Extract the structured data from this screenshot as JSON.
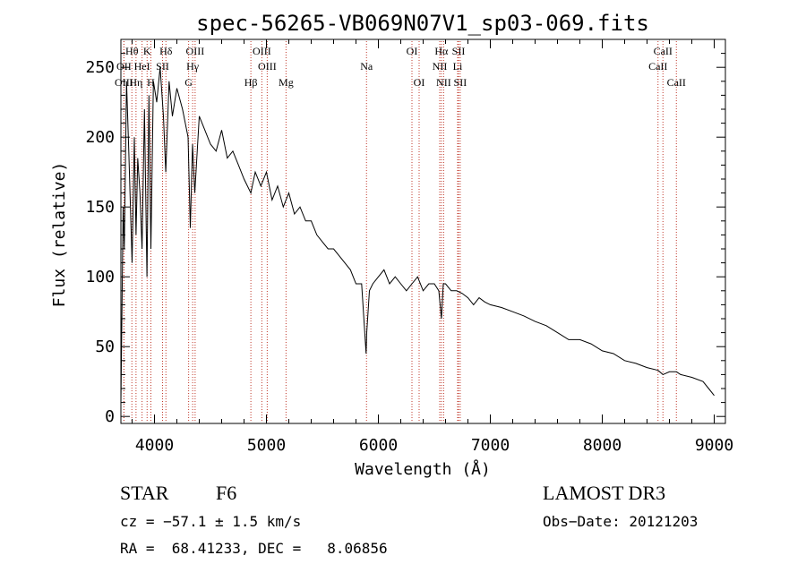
{
  "chart_data": {
    "type": "line",
    "title": "spec-56265-VB069N07V1_sp03-069.fits",
    "xlabel": "Wavelength (Å)",
    "ylabel": "Flux (relative)",
    "xlim": [
      3700,
      9100
    ],
    "ylim": [
      -5,
      270
    ],
    "xticks": [
      4000,
      5000,
      6000,
      7000,
      8000,
      9000
    ],
    "yticks": [
      0,
      50,
      100,
      150,
      200,
      250
    ],
    "grid": false,
    "series": [
      {
        "name": "spectrum",
        "x": [
          3700,
          3720,
          3730,
          3750,
          3770,
          3800,
          3820,
          3835,
          3850,
          3870,
          3889,
          3910,
          3933,
          3950,
          3968,
          3990,
          4020,
          4050,
          4080,
          4101,
          4130,
          4160,
          4200,
          4250,
          4300,
          4320,
          4340,
          4360,
          4400,
          4450,
          4500,
          4550,
          4600,
          4650,
          4700,
          4750,
          4800,
          4861,
          4900,
          4950,
          5000,
          5050,
          5100,
          5150,
          5200,
          5250,
          5300,
          5350,
          5400,
          5450,
          5500,
          5550,
          5600,
          5650,
          5700,
          5750,
          5800,
          5850,
          5890,
          5896,
          5920,
          5950,
          6000,
          6050,
          6100,
          6150,
          6200,
          6250,
          6300,
          6350,
          6400,
          6450,
          6500,
          6540,
          6563,
          6580,
          6600,
          6650,
          6700,
          6750,
          6800,
          6850,
          6900,
          6950,
          7000,
          7100,
          7200,
          7300,
          7400,
          7500,
          7600,
          7700,
          7800,
          7900,
          8000,
          8100,
          8200,
          8300,
          8400,
          8498,
          8542,
          8600,
          8662,
          8700,
          8800,
          8900,
          8950,
          9000
        ],
        "y": [
          10,
          150,
          120,
          240,
          190,
          110,
          200,
          130,
          185,
          160,
          120,
          220,
          100,
          230,
          120,
          240,
          225,
          250,
          215,
          175,
          240,
          215,
          235,
          220,
          200,
          135,
          195,
          160,
          215,
          205,
          195,
          190,
          205,
          185,
          190,
          180,
          170,
          160,
          175,
          165,
          175,
          155,
          165,
          150,
          160,
          145,
          150,
          140,
          140,
          130,
          125,
          120,
          120,
          115,
          110,
          105,
          95,
          95,
          45,
          60,
          90,
          95,
          100,
          105,
          95,
          100,
          95,
          90,
          95,
          100,
          90,
          95,
          95,
          90,
          70,
          95,
          95,
          90,
          90,
          88,
          85,
          80,
          85,
          82,
          80,
          78,
          75,
          72,
          68,
          65,
          60,
          55,
          55,
          52,
          47,
          45,
          40,
          38,
          35,
          33,
          30,
          32,
          32,
          30,
          28,
          25,
          20,
          15
        ]
      }
    ],
    "lines": [
      {
        "label": "Hθ",
        "wavelength": 3798,
        "row": 1
      },
      {
        "label": "OII",
        "wavelength": 3727,
        "row": 2
      },
      {
        "label": "OIII",
        "wavelength": 3727,
        "row": 3
      },
      {
        "label": "K",
        "wavelength": 3934,
        "row": 1
      },
      {
        "label": "HeI",
        "wavelength": 3889,
        "row": 2
      },
      {
        "label": "Hη",
        "wavelength": 3835,
        "row": 3
      },
      {
        "label": "Hδ",
        "wavelength": 4102,
        "row": 1
      },
      {
        "label": "SII",
        "wavelength": 4072,
        "row": 2
      },
      {
        "label": "H",
        "wavelength": 3968,
        "row": 3
      },
      {
        "label": "OIII",
        "wavelength": 4363,
        "row": 1
      },
      {
        "label": "Hγ",
        "wavelength": 4341,
        "row": 2
      },
      {
        "label": "G",
        "wavelength": 4305,
        "row": 3
      },
      {
        "label": "OIII",
        "wavelength": 4959,
        "row": 1
      },
      {
        "label": "OIII",
        "wavelength": 5007,
        "row": 2
      },
      {
        "label": "Hβ",
        "wavelength": 4861,
        "row": 3
      },
      {
        "label": "Mg",
        "wavelength": 5175,
        "row": 3
      },
      {
        "label": "Na",
        "wavelength": 5894,
        "row": 2
      },
      {
        "label": "OI",
        "wavelength": 6300,
        "row": 1
      },
      {
        "label": "OI",
        "wavelength": 6364,
        "row": 3
      },
      {
        "label": "Hα",
        "wavelength": 6563,
        "row": 1
      },
      {
        "label": "SII",
        "wavelength": 6716,
        "row": 1
      },
      {
        "label": "NII",
        "wavelength": 6548,
        "row": 2
      },
      {
        "label": "Li",
        "wavelength": 6708,
        "row": 2
      },
      {
        "label": "NII",
        "wavelength": 6583,
        "row": 3
      },
      {
        "label": "SII",
        "wavelength": 6731,
        "row": 3
      },
      {
        "label": "CaII",
        "wavelength": 8542,
        "row": 1
      },
      {
        "label": "CaII",
        "wavelength": 8498,
        "row": 2
      },
      {
        "label": "CaII",
        "wavelength": 8662,
        "row": 3
      }
    ]
  },
  "info": {
    "class_label": "STAR",
    "subclass": "F6",
    "survey": "LAMOST DR3",
    "velocity": "cz = −57.1 ± 1.5 km/s",
    "obs_date": "Obs−Date: 20121203",
    "coords": "RA =  68.41233, DEC =   8.06856"
  }
}
